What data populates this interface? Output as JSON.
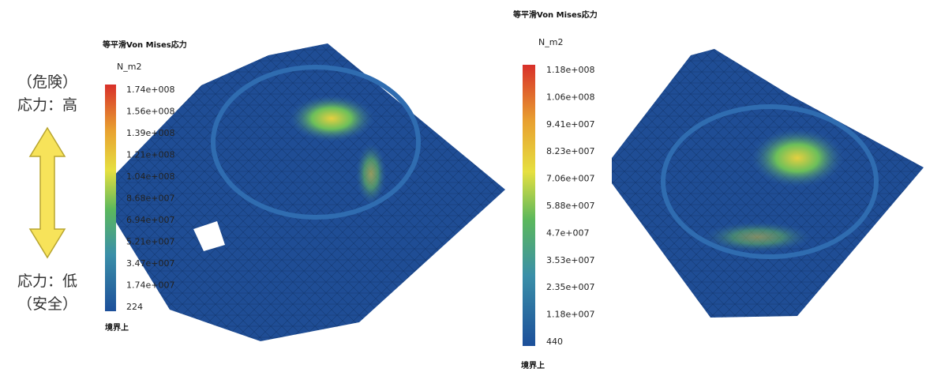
{
  "annotation": {
    "top": [
      "（危険）",
      "応力：高"
    ],
    "bottom": [
      "応力：低",
      "（安全）"
    ]
  },
  "legends": [
    {
      "title": "等平滑Von Mises応力",
      "unit": "N_m2",
      "labels": [
        "1.74e+008",
        "1.56e+008",
        "1.39e+008",
        "1.21e+008",
        "1.04e+008",
        "8.68e+007",
        "6.94e+007",
        "5.21e+007",
        "3.47e+007",
        "1.74e+007",
        "224"
      ],
      "footer": "境界上"
    },
    {
      "title": "等平滑Von Mises応力",
      "unit": "N_m2",
      "labels": [
        "1.18e+008",
        "1.06e+008",
        "9.41e+007",
        "8.23e+007",
        "7.06e+007",
        "5.88e+007",
        "4.7e+007",
        "3.53e+007",
        "2.35e+007",
        "1.18e+007",
        "440"
      ],
      "footer": "境界上"
    }
  ]
}
